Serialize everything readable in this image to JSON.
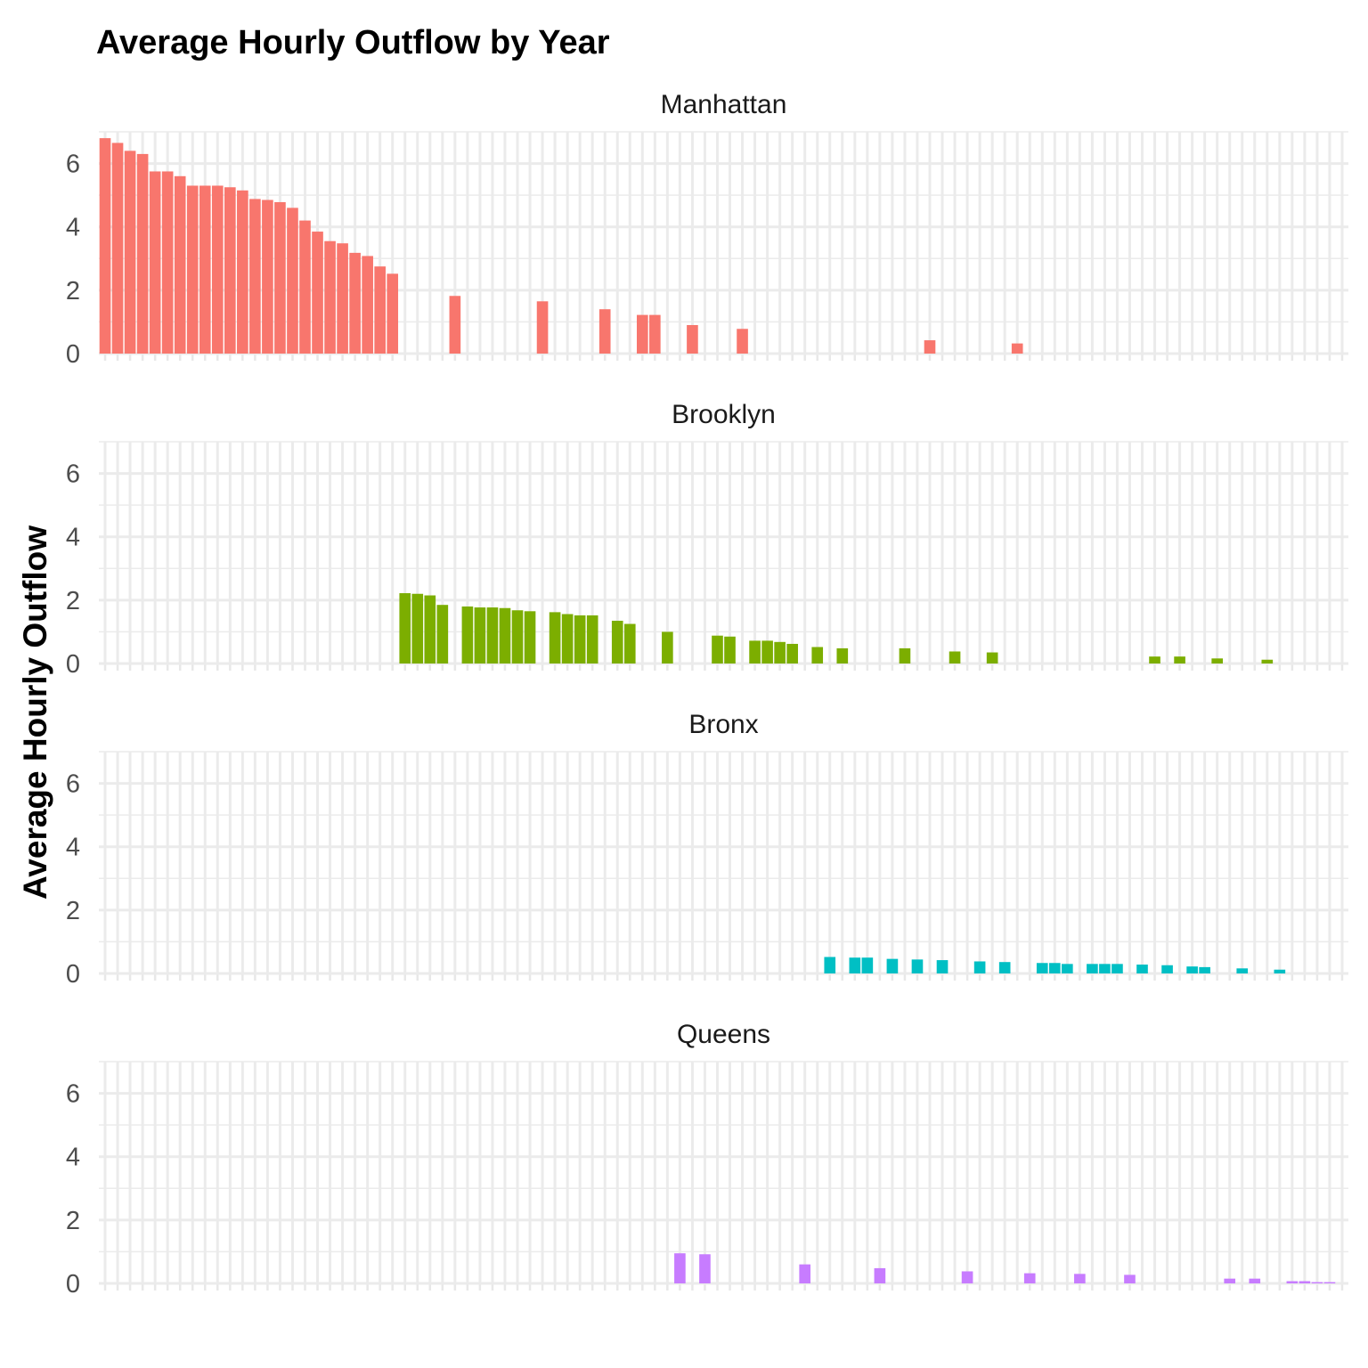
{
  "chart_data": {
    "type": "bar",
    "title": "Average Hourly Outflow by Year",
    "xlabel": "",
    "ylabel": "Average Hourly Outflow",
    "ylim": [
      0,
      7
    ],
    "yticks": [
      0,
      2,
      4,
      6
    ],
    "grid": true,
    "x_categories": 100,
    "panels": [
      {
        "name": "Manhattan",
        "color": "#F8766D",
        "points": [
          [
            0,
            6.8
          ],
          [
            1,
            6.65
          ],
          [
            2,
            6.4
          ],
          [
            3,
            6.3
          ],
          [
            4,
            5.75
          ],
          [
            5,
            5.75
          ],
          [
            6,
            5.6
          ],
          [
            7,
            5.3
          ],
          [
            8,
            5.3
          ],
          [
            9,
            5.3
          ],
          [
            10,
            5.25
          ],
          [
            11,
            5.15
          ],
          [
            12,
            4.88
          ],
          [
            13,
            4.85
          ],
          [
            14,
            4.78
          ],
          [
            15,
            4.6
          ],
          [
            16,
            4.2
          ],
          [
            17,
            3.85
          ],
          [
            18,
            3.55
          ],
          [
            19,
            3.48
          ],
          [
            20,
            3.18
          ],
          [
            21,
            3.08
          ],
          [
            22,
            2.75
          ],
          [
            23,
            2.52
          ],
          [
            28,
            1.82
          ],
          [
            35,
            1.65
          ],
          [
            40,
            1.4
          ],
          [
            43,
            1.22
          ],
          [
            44,
            1.22
          ],
          [
            47,
            0.9
          ],
          [
            51,
            0.78
          ],
          [
            66,
            0.42
          ],
          [
            73,
            0.32
          ]
        ]
      },
      {
        "name": "Brooklyn",
        "color": "#7CAE00",
        "points": [
          [
            24,
            2.22
          ],
          [
            25,
            2.2
          ],
          [
            26,
            2.15
          ],
          [
            27,
            1.85
          ],
          [
            29,
            1.8
          ],
          [
            30,
            1.77
          ],
          [
            31,
            1.77
          ],
          [
            32,
            1.75
          ],
          [
            33,
            1.68
          ],
          [
            34,
            1.65
          ],
          [
            36,
            1.62
          ],
          [
            37,
            1.56
          ],
          [
            38,
            1.52
          ],
          [
            39,
            1.52
          ],
          [
            41,
            1.35
          ],
          [
            42,
            1.25
          ],
          [
            45,
            1.0
          ],
          [
            49,
            0.88
          ],
          [
            50,
            0.85
          ],
          [
            52,
            0.72
          ],
          [
            53,
            0.72
          ],
          [
            54,
            0.68
          ],
          [
            55,
            0.62
          ],
          [
            57,
            0.52
          ],
          [
            59,
            0.48
          ],
          [
            64,
            0.48
          ],
          [
            68,
            0.38
          ],
          [
            71,
            0.35
          ],
          [
            84,
            0.22
          ],
          [
            86,
            0.22
          ],
          [
            89,
            0.16
          ],
          [
            93,
            0.12
          ]
        ]
      },
      {
        "name": "Bronx",
        "color": "#00BFC4",
        "points": [
          [
            58,
            0.52
          ],
          [
            60,
            0.5
          ],
          [
            61,
            0.5
          ],
          [
            63,
            0.46
          ],
          [
            65,
            0.44
          ],
          [
            67,
            0.42
          ],
          [
            70,
            0.38
          ],
          [
            72,
            0.36
          ],
          [
            75,
            0.33
          ],
          [
            76,
            0.33
          ],
          [
            77,
            0.3
          ],
          [
            79,
            0.3
          ],
          [
            80,
            0.3
          ],
          [
            81,
            0.3
          ],
          [
            83,
            0.28
          ],
          [
            85,
            0.26
          ],
          [
            87,
            0.22
          ],
          [
            88,
            0.2
          ],
          [
            91,
            0.16
          ],
          [
            94,
            0.12
          ]
        ]
      },
      {
        "name": "Queens",
        "color": "#C77CFF",
        "points": [
          [
            46,
            0.95
          ],
          [
            48,
            0.92
          ],
          [
            56,
            0.6
          ],
          [
            62,
            0.48
          ],
          [
            69,
            0.38
          ],
          [
            74,
            0.32
          ],
          [
            78,
            0.3
          ],
          [
            82,
            0.27
          ],
          [
            90,
            0.15
          ],
          [
            92,
            0.15
          ],
          [
            95,
            0.07
          ],
          [
            96,
            0.07
          ],
          [
            97,
            0.04
          ],
          [
            98,
            0.04
          ]
        ]
      }
    ]
  }
}
